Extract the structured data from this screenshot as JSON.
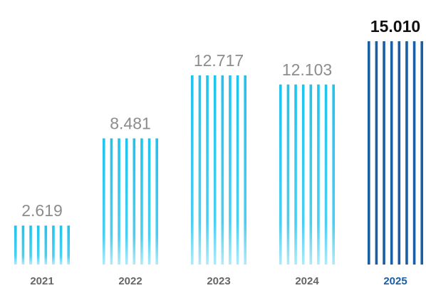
{
  "chart_data": {
    "type": "bar",
    "title": "",
    "xlabel": "",
    "ylabel": "",
    "categories": [
      "2021",
      "2022",
      "2023",
      "2024",
      "2025"
    ],
    "values": [
      2619,
      8481,
      12717,
      12103,
      15010
    ],
    "value_labels": [
      "2.619",
      "8.481",
      "12.717",
      "12.103",
      "15.010"
    ],
    "ylim": [
      0,
      15010
    ],
    "grid": false,
    "legend": "none",
    "highlight_index": 4
  },
  "colors": {
    "bar_stripe": "#1ec3ee",
    "bar_stripe_highlight": "#1a5fa3",
    "value_label": "#8c8c8c",
    "value_label_highlight": "#111111",
    "category_label": "#666666",
    "category_label_highlight": "#1a5fa3"
  }
}
